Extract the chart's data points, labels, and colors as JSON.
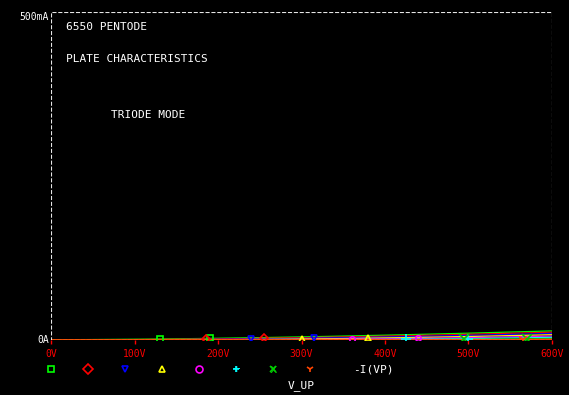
{
  "title_line1": "6550 PENTODE",
  "title_line2": "PLATE CHARACTERISTICS",
  "subtitle": "TRIODE MODE",
  "xlabel": "V_UP",
  "ylabel_top": "500mA",
  "ylabel_bottom": "0A",
  "xlim": [
    0,
    600
  ],
  "ylim": [
    0,
    0.5
  ],
  "xticks": [
    0,
    100,
    200,
    300,
    400,
    500,
    600
  ],
  "xticklabels": [
    "0V",
    "100V",
    "200V",
    "300V",
    "400V",
    "500V",
    "600V"
  ],
  "background_color": "#000000",
  "curves": [
    {
      "color": "#00ff00",
      "marker": "s",
      "K": 3.5e-07,
      "n": 1.65,
      "shift": 0,
      "mpos": [
        130,
        190
      ]
    },
    {
      "color": "#ff0000",
      "marker": "D",
      "K": 3.5e-07,
      "n": 1.65,
      "shift": 55,
      "mpos": [
        185,
        255
      ]
    },
    {
      "color": "#0000ff",
      "marker": "v",
      "K": 3.5e-07,
      "n": 1.65,
      "shift": 110,
      "mpos": [
        240,
        315
      ]
    },
    {
      "color": "#ffff00",
      "marker": "^",
      "K": 3.5e-07,
      "n": 1.65,
      "shift": 175,
      "mpos": [
        300,
        380
      ]
    },
    {
      "color": "#ff00ff",
      "marker": "o",
      "K": 3.5e-07,
      "n": 1.65,
      "shift": 250,
      "mpos": [
        360,
        440
      ]
    },
    {
      "color": "#00ffff",
      "marker": "+",
      "K": 3.5e-07,
      "n": 1.65,
      "shift": 330,
      "mpos": [
        425,
        500
      ]
    },
    {
      "color": "#00cc00",
      "marker": "x",
      "K": 3.5e-07,
      "n": 1.65,
      "shift": 415,
      "mpos": [
        495,
        570
      ]
    },
    {
      "color": "#ff4400",
      "marker": "1",
      "K": 3.5e-07,
      "n": 1.65,
      "shift": 500,
      "mpos": [
        565,
        640
      ]
    }
  ],
  "legend_items": [
    {
      "marker": "s",
      "color": "#00ff00"
    },
    {
      "marker": "D",
      "color": "#ff0000"
    },
    {
      "marker": "v",
      "color": "#0000ff"
    },
    {
      "marker": "^",
      "color": "#ffff00"
    },
    {
      "marker": "o",
      "color": "#ff00ff"
    },
    {
      "marker": "+",
      "color": "#00ffff"
    },
    {
      "marker": "x",
      "color": "#00cc00"
    },
    {
      "marker": "1",
      "color": "#ff4400"
    }
  ],
  "legend_label": "-I(VP)"
}
